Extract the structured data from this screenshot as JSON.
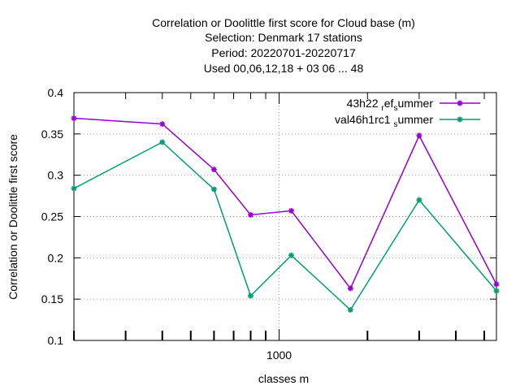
{
  "chart_data": {
    "type": "line",
    "title_lines": [
      "Correlation or Doolittle first score  for Cloud base (m)",
      "Selection: Denmark     17 stations",
      "Period: 20220701-20220717",
      "Used  00,06,12,18  + 03 06 ... 48"
    ],
    "xlabel": "classes m",
    "ylabel": "Correlation or Doolittle first score",
    "x_scale": "log",
    "xlim": [
      200,
      5500
    ],
    "ylim": [
      0.1,
      0.4
    ],
    "x_tick_labels": [
      {
        "value": 1000,
        "label": "1000"
      }
    ],
    "y_ticks": [
      0.1,
      0.15,
      0.2,
      0.25,
      0.3,
      0.35,
      0.4
    ],
    "y_tick_labels": [
      "0.1",
      "0.15",
      "0.2",
      "0.25",
      "0.3",
      "0.35",
      "0.4"
    ],
    "grid": true,
    "legend_position": "top-right",
    "x": [
      200,
      400,
      600,
      800,
      1100,
      1750,
      3000,
      5500
    ],
    "series": [
      {
        "name": "43h22 ref summer",
        "legend_parts": [
          "43h22 ",
          "r",
          "ef",
          "s",
          "ummer"
        ],
        "color": "#9400d3",
        "values": [
          0.369,
          0.362,
          0.307,
          0.252,
          0.257,
          0.163,
          0.348,
          0.168
        ]
      },
      {
        "name": "val46h1rc1 summer",
        "legend_parts": [
          "val46h1rc1 ",
          "s",
          "ummer"
        ],
        "color": "#009e73",
        "values": [
          0.284,
          0.34,
          0.283,
          0.154,
          0.203,
          0.137,
          0.27,
          0.16
        ]
      }
    ]
  }
}
